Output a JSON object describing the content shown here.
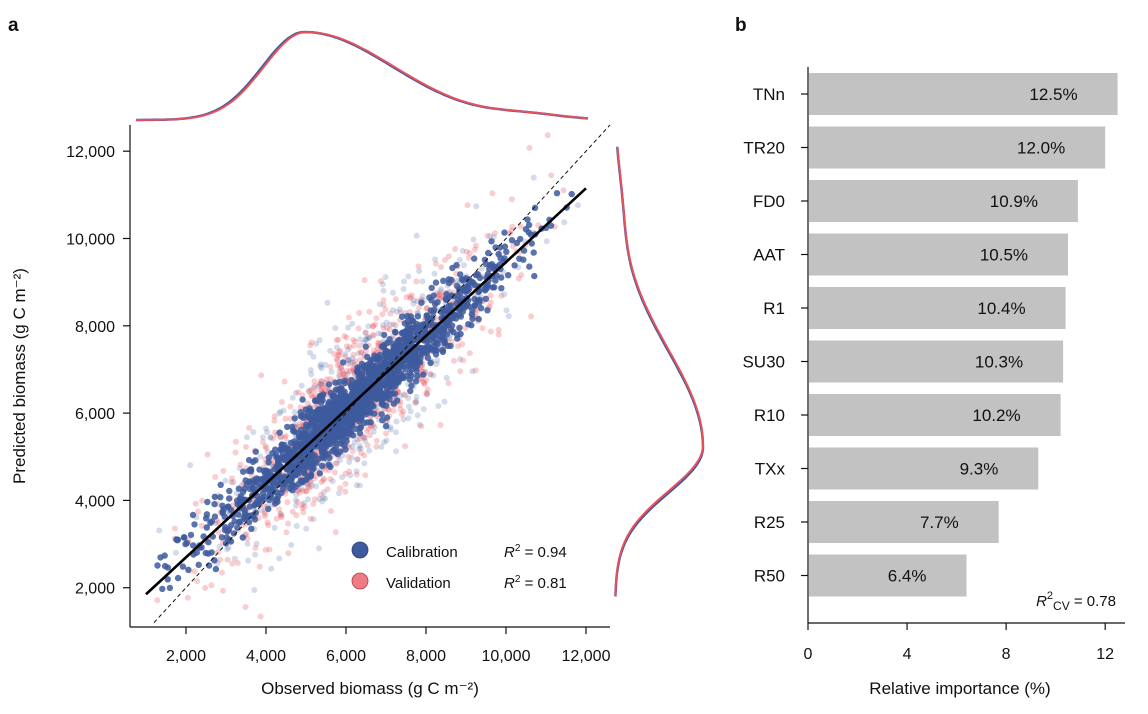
{
  "panels": {
    "a": "a",
    "b": "b"
  },
  "colors": {
    "calibration": "#3d5a9e",
    "validation": "#e8505b",
    "bar": "#c2c2c2",
    "fit": "#000000"
  },
  "chart_data": [
    {
      "type": "scatter",
      "panel": "a",
      "xlabel": "Observed biomass (g C m⁻²)",
      "ylabel": "Predicted biomass (g C m⁻²)",
      "xlim": [
        600,
        12600
      ],
      "ylim": [
        1100,
        12600
      ],
      "xticks": [
        2000,
        4000,
        6000,
        8000,
        10000,
        12000
      ],
      "xtick_labels": [
        "2,000",
        "4,000",
        "6,000",
        "8,000",
        "10,000",
        "12,000"
      ],
      "yticks": [
        2000,
        4000,
        6000,
        8000,
        10000,
        12000
      ],
      "ytick_labels": [
        "2,000",
        "4,000",
        "6,000",
        "8,000",
        "10,000",
        "12,000"
      ],
      "fit_line": {
        "x": [
          1000,
          12000
        ],
        "y": [
          1850,
          11150
        ]
      },
      "identity_line": {
        "x": [
          1000,
          12600
        ],
        "y": [
          1000,
          12600
        ]
      },
      "density_center": 5000,
      "series": [
        {
          "name": "Calibration",
          "r2_label": "R",
          "r2_sup": "2",
          "r2_value": " = 0.94"
        },
        {
          "name": "Validation",
          "r2_label": "R",
          "r2_sup": "2",
          "r2_value": " = 0.81"
        }
      ],
      "legend_position": "bottom-right",
      "grid": false
    },
    {
      "type": "bar",
      "panel": "b",
      "orientation": "horizontal",
      "xlabel": "Relative importance (%)",
      "xlim": [
        0,
        12.8
      ],
      "xticks": [
        0,
        4,
        8,
        12
      ],
      "categories": [
        "TNn",
        "TR20",
        "FD0",
        "AAT",
        "R1",
        "SU30",
        "R10",
        "TXx",
        "R25",
        "R50"
      ],
      "values": [
        12.5,
        12.0,
        10.9,
        10.5,
        10.4,
        10.3,
        10.2,
        9.3,
        7.7,
        6.4
      ],
      "value_labels": [
        "12.5%",
        "12.0%",
        "10.9%",
        "10.5%",
        "10.4%",
        "10.3%",
        "10.2%",
        "9.3%",
        "7.7%",
        "6.4%"
      ],
      "annotation": {
        "r": "R",
        "sup": "2",
        "sub": "CV",
        "value": " = 0.78"
      },
      "grid": false
    }
  ]
}
